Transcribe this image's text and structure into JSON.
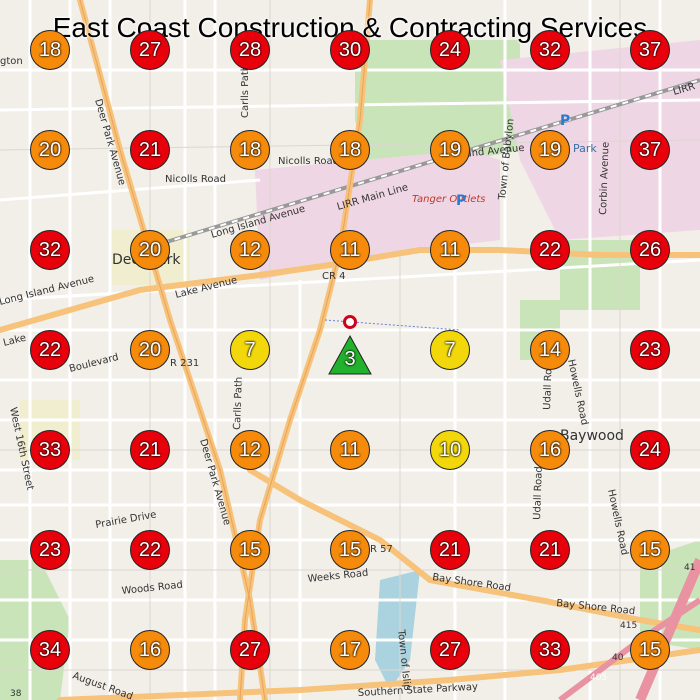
{
  "title": "East Coast Construction & Contracting Services",
  "colors": {
    "red": "#e8000b",
    "orange": "#f58a0b",
    "yellow": "#f2d70b",
    "green": "#22b12c",
    "road_major": "#f7c27a",
    "road_minor": "#ffffff",
    "park": "#c9e4b8",
    "commercial": "#efd6e4",
    "water": "#aad3df",
    "rail": "#777777"
  },
  "grid_markers": [
    {
      "row": 0,
      "col": 0,
      "value": "18",
      "level": "orange"
    },
    {
      "row": 0,
      "col": 1,
      "value": "27",
      "level": "red"
    },
    {
      "row": 0,
      "col": 2,
      "value": "28",
      "level": "red"
    },
    {
      "row": 0,
      "col": 3,
      "value": "30",
      "level": "red"
    },
    {
      "row": 0,
      "col": 4,
      "value": "24",
      "level": "red"
    },
    {
      "row": 0,
      "col": 5,
      "value": "32",
      "level": "red"
    },
    {
      "row": 0,
      "col": 6,
      "value": "37",
      "level": "red"
    },
    {
      "row": 1,
      "col": 0,
      "value": "20",
      "level": "orange"
    },
    {
      "row": 1,
      "col": 1,
      "value": "21",
      "level": "red"
    },
    {
      "row": 1,
      "col": 2,
      "value": "18",
      "level": "orange"
    },
    {
      "row": 1,
      "col": 3,
      "value": "18",
      "level": "orange"
    },
    {
      "row": 1,
      "col": 4,
      "value": "19",
      "level": "orange"
    },
    {
      "row": 1,
      "col": 5,
      "value": "19",
      "level": "orange"
    },
    {
      "row": 1,
      "col": 6,
      "value": "37",
      "level": "red"
    },
    {
      "row": 2,
      "col": 0,
      "value": "32",
      "level": "red"
    },
    {
      "row": 2,
      "col": 1,
      "value": "20",
      "level": "orange"
    },
    {
      "row": 2,
      "col": 2,
      "value": "12",
      "level": "orange"
    },
    {
      "row": 2,
      "col": 3,
      "value": "11",
      "level": "orange"
    },
    {
      "row": 2,
      "col": 4,
      "value": "11",
      "level": "orange"
    },
    {
      "row": 2,
      "col": 5,
      "value": "22",
      "level": "red"
    },
    {
      "row": 2,
      "col": 6,
      "value": "26",
      "level": "red"
    },
    {
      "row": 3,
      "col": 0,
      "value": "22",
      "level": "red"
    },
    {
      "row": 3,
      "col": 1,
      "value": "20",
      "level": "orange"
    },
    {
      "row": 3,
      "col": 2,
      "value": "7",
      "level": "yellow"
    },
    {
      "row": 3,
      "col": 4,
      "value": "7",
      "level": "yellow"
    },
    {
      "row": 3,
      "col": 5,
      "value": "14",
      "level": "orange"
    },
    {
      "row": 3,
      "col": 6,
      "value": "23",
      "level": "red"
    },
    {
      "row": 4,
      "col": 0,
      "value": "33",
      "level": "red"
    },
    {
      "row": 4,
      "col": 1,
      "value": "21",
      "level": "red"
    },
    {
      "row": 4,
      "col": 2,
      "value": "12",
      "level": "orange"
    },
    {
      "row": 4,
      "col": 3,
      "value": "11",
      "level": "orange"
    },
    {
      "row": 4,
      "col": 4,
      "value": "10",
      "level": "yellow"
    },
    {
      "row": 4,
      "col": 5,
      "value": "16",
      "level": "orange"
    },
    {
      "row": 4,
      "col": 6,
      "value": "24",
      "level": "red"
    },
    {
      "row": 5,
      "col": 0,
      "value": "23",
      "level": "red"
    },
    {
      "row": 5,
      "col": 1,
      "value": "22",
      "level": "red"
    },
    {
      "row": 5,
      "col": 2,
      "value": "15",
      "level": "orange"
    },
    {
      "row": 5,
      "col": 3,
      "value": "15",
      "level": "orange"
    },
    {
      "row": 5,
      "col": 4,
      "value": "21",
      "level": "red"
    },
    {
      "row": 5,
      "col": 5,
      "value": "21",
      "level": "red"
    },
    {
      "row": 5,
      "col": 6,
      "value": "15",
      "level": "orange"
    },
    {
      "row": 6,
      "col": 0,
      "value": "34",
      "level": "red"
    },
    {
      "row": 6,
      "col": 1,
      "value": "16",
      "level": "orange"
    },
    {
      "row": 6,
      "col": 2,
      "value": "27",
      "level": "red"
    },
    {
      "row": 6,
      "col": 3,
      "value": "17",
      "level": "orange"
    },
    {
      "row": 6,
      "col": 4,
      "value": "27",
      "level": "red"
    },
    {
      "row": 6,
      "col": 5,
      "value": "33",
      "level": "red"
    },
    {
      "row": 6,
      "col": 6,
      "value": "15",
      "level": "orange"
    }
  ],
  "center_marker": {
    "row": 3,
    "col": 3,
    "value": "3",
    "level": "green",
    "shape": "triangle-icon"
  },
  "location_pin": {
    "icon": "location-pin-icon"
  },
  "map_labels": {
    "deer_park_avenue_n": "Deer Park Avenue",
    "deer_park_avenue_s": "Deer Park Avenue",
    "carlls_path_n": "Carlls Path",
    "carlls_path_s": "Carlls Path",
    "nicolls_road_w": "Nicolls Road",
    "nicolls_road_e": "Nicolls Road",
    "island_avenue": "Island Avenue",
    "long_island_avenue": "Long Island Avenue",
    "long_island_avenue_w": "Long Island Avenue",
    "lirr_main_line": "LIRR Main Line",
    "lirr_ne": "LIRR",
    "tanger_outlets": "Tanger Outlets",
    "cr4": "CR 4",
    "lake_avenue": "Lake Avenue",
    "lake_w": "Lake",
    "boulevard": "Boulevard",
    "r231": "R 231",
    "west_16th_street": "West 16th Street",
    "prairie_drive": "Prairie Drive",
    "woods_road": "Woods Road",
    "weeks_road": "Weeks Road",
    "r57": "R 57",
    "bay_shore_road_w": "Bay Shore Road",
    "bay_shore_road_e": "Bay Shore Road",
    "southern_state_parkway": "Southern State Parkway",
    "august_road": "August Road",
    "town_of_islip": "Town of Islip",
    "town_of_babylon": "Town of Babylon",
    "udall_road_n": "Udall Road",
    "udall_road_s": "Udall Road",
    "howells_road_n": "Howells Road",
    "howells_road_s": "Howells Road",
    "corbin_avenue": "Corbin Avenue",
    "baywood": "Baywood",
    "deer_park_place": "Deer Park",
    "park_label": "Park",
    "parking_1": "P",
    "parking_2": "P",
    "r405_a": "405",
    "r405_b": "40",
    "r415": "415",
    "r41": "41",
    "r38": "38",
    "gton": "gton"
  }
}
